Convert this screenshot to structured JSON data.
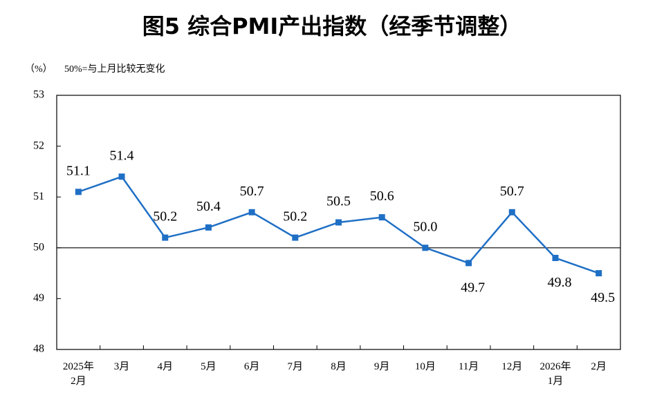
{
  "chart_data": {
    "type": "line",
    "title": "图5  综合PMI产出指数（经季节调整）",
    "y_unit": "（%）",
    "note": "50%=与上月比较无变化",
    "categories": [
      "2025年\n2月",
      "3月",
      "4月",
      "5月",
      "6月",
      "7月",
      "8月",
      "9月",
      "10月",
      "11月",
      "12月",
      "2026年\n1月",
      "2月"
    ],
    "values": [
      51.1,
      51.4,
      50.2,
      50.4,
      50.7,
      50.2,
      50.5,
      50.6,
      50.0,
      49.7,
      50.7,
      49.8,
      49.5
    ],
    "value_labels": [
      "51.1",
      "51.4",
      "50.2",
      "50.4",
      "50.7",
      "50.2",
      "50.5",
      "50.6",
      "50.0",
      "49.7",
      "50.7",
      "49.8",
      "49.5"
    ],
    "color": "#1f6fc5",
    "ylim": [
      48,
      53
    ],
    "yticks": [
      48,
      49,
      50,
      51,
      52,
      53
    ],
    "reference_line": 50
  }
}
